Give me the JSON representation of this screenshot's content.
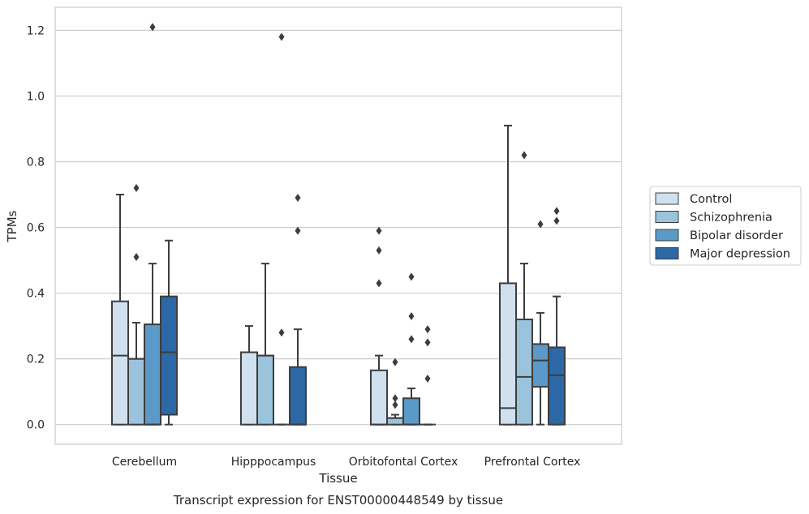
{
  "chart_data": {
    "type": "boxplot",
    "caption": "Transcript expression for ENST00000448549 by tissue",
    "xlabel": "Tissue",
    "ylabel": "TPMs",
    "ylim": [
      -0.06,
      1.27
    ],
    "yticks": [
      "0.0",
      "0.2",
      "0.4",
      "0.6",
      "0.8",
      "1.0",
      "1.2"
    ],
    "grid": "horizontal",
    "legend_position": "right",
    "categories": [
      "Cerebellum",
      "Hipppocampus",
      "Orbitofontal Cortex",
      "Prefrontal Cortex"
    ],
    "series": [
      {
        "name": "Control",
        "color": "#d0e0ef",
        "boxes": [
          {
            "whisker_low": 0.0,
            "q1": 0.0,
            "median": 0.21,
            "q3": 0.375,
            "whisker_high": 0.7,
            "outliers": []
          },
          {
            "whisker_low": 0.0,
            "q1": 0.0,
            "median": 0.22,
            "q3": 0.22,
            "whisker_high": 0.3,
            "outliers": []
          },
          {
            "whisker_low": 0.0,
            "q1": 0.0,
            "median": 0.0,
            "q3": 0.165,
            "whisker_high": 0.21,
            "outliers": [
              0.43,
              0.53,
              0.59
            ]
          },
          {
            "whisker_low": 0.0,
            "q1": 0.0,
            "median": 0.05,
            "q3": 0.43,
            "whisker_high": 0.91,
            "outliers": []
          }
        ]
      },
      {
        "name": "Schizophrenia",
        "color": "#9bc3dc",
        "boxes": [
          {
            "whisker_low": 0.0,
            "q1": 0.0,
            "median": 0.2,
            "q3": 0.2,
            "whisker_high": 0.31,
            "outliers": [
              0.51,
              0.72
            ]
          },
          {
            "whisker_low": 0.0,
            "q1": 0.0,
            "median": 0.21,
            "q3": 0.21,
            "whisker_high": 0.49,
            "outliers": []
          },
          {
            "whisker_low": 0.0,
            "q1": 0.0,
            "median": 0.02,
            "q3": 0.02,
            "whisker_high": 0.03,
            "outliers": [
              0.06,
              0.08,
              0.19
            ]
          },
          {
            "whisker_low": 0.0,
            "q1": 0.0,
            "median": 0.145,
            "q3": 0.32,
            "whisker_high": 0.49,
            "outliers": [
              0.82
            ]
          }
        ]
      },
      {
        "name": "Bipolar disorder",
        "color": "#5b9ac8",
        "boxes": [
          {
            "whisker_low": 0.0,
            "q1": 0.0,
            "median": 0.0,
            "q3": 0.305,
            "whisker_high": 0.49,
            "outliers": [
              1.21
            ]
          },
          {
            "whisker_low": 0.0,
            "q1": 0.0,
            "median": 0.0,
            "q3": 0.0,
            "whisker_high": 0.0,
            "outliers": [
              0.28,
              1.18
            ]
          },
          {
            "whisker_low": 0.0,
            "q1": 0.0,
            "median": 0.0,
            "q3": 0.08,
            "whisker_high": 0.11,
            "outliers": [
              0.26,
              0.33,
              0.45
            ]
          },
          {
            "whisker_low": 0.0,
            "q1": 0.115,
            "median": 0.195,
            "q3": 0.245,
            "whisker_high": 0.34,
            "outliers": [
              0.61
            ]
          }
        ]
      },
      {
        "name": "Major depression",
        "color": "#2c68a5",
        "boxes": [
          {
            "whisker_low": 0.0,
            "q1": 0.03,
            "median": 0.22,
            "q3": 0.39,
            "whisker_high": 0.56,
            "outliers": []
          },
          {
            "whisker_low": 0.0,
            "q1": 0.0,
            "median": 0.0,
            "q3": 0.175,
            "whisker_high": 0.29,
            "outliers": [
              0.59,
              0.69
            ]
          },
          {
            "whisker_low": 0.0,
            "q1": 0.0,
            "median": 0.0,
            "q3": 0.0,
            "whisker_high": 0.0,
            "outliers": [
              0.14,
              0.25,
              0.29
            ]
          },
          {
            "whisker_low": 0.0,
            "q1": 0.0,
            "median": 0.15,
            "q3": 0.235,
            "whisker_high": 0.39,
            "outliers": [
              0.62,
              0.65
            ]
          }
        ]
      }
    ]
  }
}
